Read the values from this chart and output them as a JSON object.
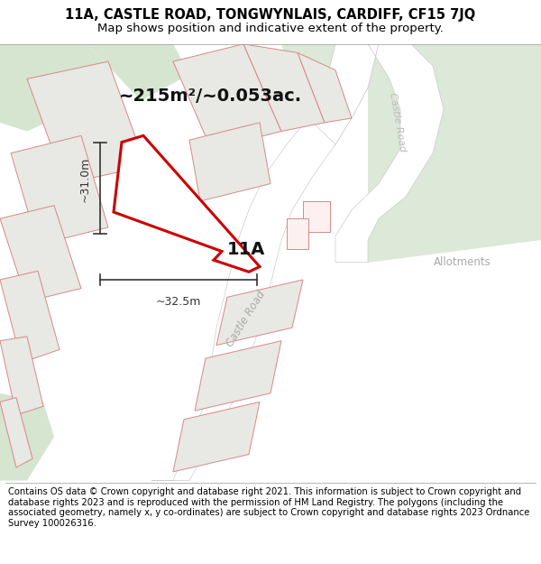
{
  "title_line1": "11A, CASTLE ROAD, TONGWYNLAIS, CARDIFF, CF15 7JQ",
  "title_line2": "Map shows position and indicative extent of the property.",
  "area_text": "~215m²/~0.053ac.",
  "label_11a": "11A",
  "label_castle_road_diag": "Castle Road",
  "label_castle_road_right": "Castle Road",
  "label_allotments": "Allotments",
  "dim_vertical": "~31.0m",
  "dim_horizontal": "~32.5m",
  "footer_text": "Contains OS data © Crown copyright and database right 2021. This information is subject to Crown copyright and database rights 2023 and is reproduced with the permission of HM Land Registry. The polygons (including the associated geometry, namely x, y co-ordinates) are subject to Crown copyright and database rights 2023 Ordnance Survey 100026316.",
  "bg_color": "#ffffff",
  "map_bg": "#f2f2ee",
  "green_tl": "#d5e5cf",
  "green_tr": "#dce8d8",
  "green_right": "#dce8d8",
  "building_fill": "#e8e8e4",
  "building_edge": "#d88888",
  "road_fill": "#ffffff",
  "road_edge": "#cccccc",
  "property_fill": "#ffffff",
  "property_edge": "#cc0000",
  "dim_color": "#333333",
  "title_fontsize": 10.5,
  "subtitle_fontsize": 9.5,
  "footer_fontsize": 7.2,
  "area_fontsize": 14,
  "label_fontsize": 14,
  "dim_fontsize": 9
}
